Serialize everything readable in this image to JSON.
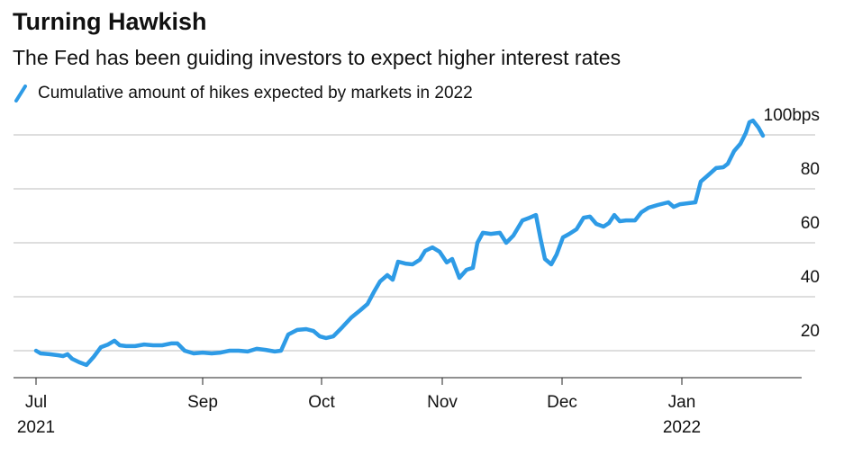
{
  "chart_data": {
    "type": "line",
    "title": "Turning Hawkish",
    "subtitle": "The Fed has been guiding investors to expect higher interest rates",
    "x": [
      0,
      1,
      3,
      5,
      6,
      7,
      8,
      9.6,
      11.2,
      12.8,
      14.4,
      16,
      17.4,
      18.6,
      20,
      22,
      24,
      26,
      28,
      30,
      31.4,
      33,
      35,
      37,
      39,
      41,
      43,
      45,
      47,
      49,
      51,
      53,
      54.4,
      56,
      58,
      60,
      61.6,
      63,
      64.4,
      66,
      68,
      70,
      72,
      73.6,
      75,
      76.4,
      78,
      79.2,
      80.4,
      82,
      83.6,
      85.2,
      86.4,
      88,
      89.6,
      91.2,
      92.4,
      94,
      95.6,
      97,
      98,
      99.2,
      101,
      103,
      104.4,
      106,
      108,
      109.6,
      111,
      112,
      113,
      114.4,
      115.6,
      117,
      118.4,
      120,
      121.6,
      123,
      124.4,
      126,
      127.2,
      128.4,
      129.6,
      131,
      133,
      134.4,
      136,
      138,
      140.4,
      141.6,
      143,
      145,
      146.4,
      147.6,
      149.2,
      151,
      152.6,
      153.6,
      155,
      156.4,
      157.6,
      158.4,
      159.2,
      160.4,
      161.4
    ],
    "series": [
      {
        "name": "Cumulative amount of hikes expected by markets in 2022",
        "color": "#2e9be6",
        "values": [
          20,
          19,
          18.7,
          18.3,
          18,
          18.7,
          17,
          15.7,
          14.7,
          17.7,
          21.3,
          22.3,
          23.7,
          22,
          21.7,
          21.7,
          22.3,
          22,
          22,
          22.7,
          22.7,
          20,
          19,
          19.3,
          19,
          19.3,
          20,
          20,
          19.7,
          20.7,
          20.3,
          19.7,
          20,
          26,
          27.7,
          28,
          27.3,
          25.3,
          24.7,
          25.3,
          28.7,
          32.3,
          35,
          37.3,
          41.7,
          45.7,
          48,
          46.3,
          53,
          52.3,
          52,
          53.7,
          57,
          58.3,
          56.7,
          52.7,
          54,
          47,
          50,
          50.7,
          60,
          63.7,
          63.3,
          63.7,
          60,
          62.7,
          68.3,
          69.3,
          70.3,
          61.7,
          54,
          52,
          55.7,
          62,
          63.3,
          65,
          69.3,
          69.7,
          67,
          66,
          67.3,
          70.3,
          68,
          68.3,
          68.3,
          71.3,
          73,
          74,
          75,
          73.3,
          74.3,
          74.7,
          75,
          82.7,
          85,
          87.7,
          88,
          89.3,
          94,
          96.7,
          100.7,
          104.7,
          105.3,
          102.7,
          99.7
        ]
      }
    ],
    "xlim": [
      0,
      170
    ],
    "xticks": [
      {
        "value": 0,
        "label": "Jul"
      },
      {
        "value": 37,
        "label": "Sep"
      },
      {
        "value": 63.4,
        "label": "Oct"
      },
      {
        "value": 90.2,
        "label": "Nov"
      },
      {
        "value": 116.8,
        "label": "Dec"
      },
      {
        "value": 143.4,
        "label": "Jan"
      }
    ],
    "year_labels": [
      {
        "value": 0,
        "label": "2021"
      },
      {
        "value": 143.4,
        "label": "2022"
      }
    ],
    "ylim": [
      10,
      106
    ],
    "yticks": [
      20,
      40,
      60,
      80,
      {
        "value": 100,
        "label": "100bps"
      }
    ],
    "grid": true
  }
}
